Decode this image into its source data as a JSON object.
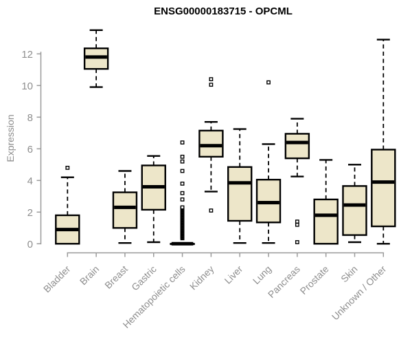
{
  "title": "ENSG00000183715 - OPCML",
  "colors": {
    "box_fill": "#ede6c9",
    "box_stroke": "#000000",
    "median_color": "#000000",
    "whisker_color": "#000000",
    "outlier_stroke": "#000000",
    "axis_color": "#9a9a9a",
    "tick_label_color": "#8e8e8e",
    "title_color": "#000000",
    "background": "#ffffff"
  },
  "chart_data": {
    "type": "boxplot",
    "title": "ENSG00000183715 - OPCML",
    "xlabel": "",
    "ylabel": "Expression",
    "ylim": [
      0,
      13.5
    ],
    "yticks": [
      0,
      2,
      4,
      6,
      8,
      10,
      12
    ],
    "grid": false,
    "legend": false,
    "categories": [
      "Bladder",
      "Brain",
      "Breast",
      "Gastric",
      "Hematopoietic cells",
      "Kidney",
      "Liver",
      "Lung",
      "Pancreas",
      "Prostate",
      "Skin",
      "Unknown / Other"
    ],
    "series": [
      {
        "name": "Bladder",
        "whisker_low": 0,
        "q1": 0,
        "median": 0.9,
        "q3": 1.8,
        "whisker_high": 4.2,
        "outliers": [
          4.8
        ]
      },
      {
        "name": "Brain",
        "whisker_low": 9.9,
        "q1": 11.05,
        "median": 11.8,
        "q3": 12.35,
        "whisker_high": 13.5,
        "outliers": []
      },
      {
        "name": "Breast",
        "whisker_low": 0.05,
        "q1": 1.0,
        "median": 2.3,
        "q3": 3.25,
        "whisker_high": 4.6,
        "outliers": []
      },
      {
        "name": "Gastric",
        "whisker_low": 0.1,
        "q1": 2.15,
        "median": 3.6,
        "q3": 4.95,
        "whisker_high": 5.55,
        "outliers": []
      },
      {
        "name": "Hematopoietic cells",
        "whisker_low": 0,
        "q1": 0,
        "median": 0,
        "q3": 0,
        "whisker_high": 0,
        "outliers": [
          0.35,
          0.4,
          0.45,
          0.5,
          0.55,
          0.6,
          0.65,
          0.7,
          0.75,
          0.8,
          0.85,
          0.9,
          0.95,
          1.0,
          1.05,
          1.1,
          1.15,
          1.2,
          1.25,
          1.3,
          1.35,
          1.4,
          1.45,
          1.5,
          1.55,
          1.6,
          1.65,
          1.7,
          1.75,
          1.8,
          1.85,
          1.9,
          1.95,
          2.0,
          2.05,
          2.1,
          2.15,
          2.2,
          2.25,
          2.3,
          2.8,
          3.2,
          3.8,
          4.6,
          5.2,
          5.5,
          6.4
        ]
      },
      {
        "name": "Kidney",
        "whisker_low": 3.3,
        "q1": 5.5,
        "median": 6.2,
        "q3": 7.15,
        "whisker_high": 7.7,
        "outliers": [
          2.1,
          10.05,
          10.4
        ]
      },
      {
        "name": "Liver",
        "whisker_low": 0.05,
        "q1": 1.45,
        "median": 3.85,
        "q3": 4.85,
        "whisker_high": 7.25,
        "outliers": []
      },
      {
        "name": "Lung",
        "whisker_low": 0.05,
        "q1": 1.35,
        "median": 2.6,
        "q3": 4.05,
        "whisker_high": 6.3,
        "outliers": [
          10.2
        ]
      },
      {
        "name": "Pancreas",
        "whisker_low": 4.25,
        "q1": 5.4,
        "median": 6.4,
        "q3": 6.95,
        "whisker_high": 7.9,
        "outliers": [
          0.1,
          1.2,
          1.4
        ]
      },
      {
        "name": "Prostate",
        "whisker_low": 0,
        "q1": 0,
        "median": 1.8,
        "q3": 2.8,
        "whisker_high": 5.3,
        "outliers": []
      },
      {
        "name": "Skin",
        "whisker_low": 0.1,
        "q1": 0.55,
        "median": 2.45,
        "q3": 3.65,
        "whisker_high": 5.0,
        "outliers": []
      },
      {
        "name": "Unknown / Other",
        "whisker_low": 0,
        "q1": 1.1,
        "median": 3.9,
        "q3": 5.95,
        "whisker_high": 12.9,
        "outliers": []
      }
    ]
  }
}
